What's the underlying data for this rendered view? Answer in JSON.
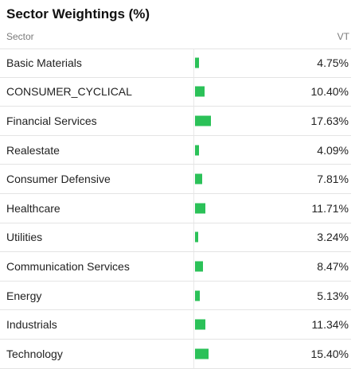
{
  "title": "Sector Weightings (%)",
  "header": {
    "sector_label": "Sector",
    "fund_label": "VT"
  },
  "colors": {
    "bar": "#2bc158",
    "divider": "#e4e4e4"
  },
  "chart_data": {
    "type": "bar",
    "title": "Sector Weightings (%)",
    "xlabel": "",
    "ylabel": "",
    "categories": [
      "Basic Materials",
      "CONSUMER_CYCLICAL",
      "Financial Services",
      "Realestate",
      "Consumer Defensive",
      "Healthcare",
      "Utilities",
      "Communication Services",
      "Energy",
      "Industrials",
      "Technology"
    ],
    "values": [
      4.75,
      10.4,
      17.63,
      4.09,
      7.81,
      11.71,
      3.24,
      8.47,
      5.13,
      11.34,
      15.4
    ],
    "value_labels": [
      "4.75%",
      "10.40%",
      "17.63%",
      "4.09%",
      "7.81%",
      "11.71%",
      "3.24%",
      "8.47%",
      "5.13%",
      "11.34%",
      "15.40%"
    ],
    "series": [
      {
        "name": "VT",
        "values": [
          4.75,
          10.4,
          17.63,
          4.09,
          7.81,
          11.71,
          3.24,
          8.47,
          5.13,
          11.34,
          15.4
        ]
      }
    ],
    "grid": false
  }
}
